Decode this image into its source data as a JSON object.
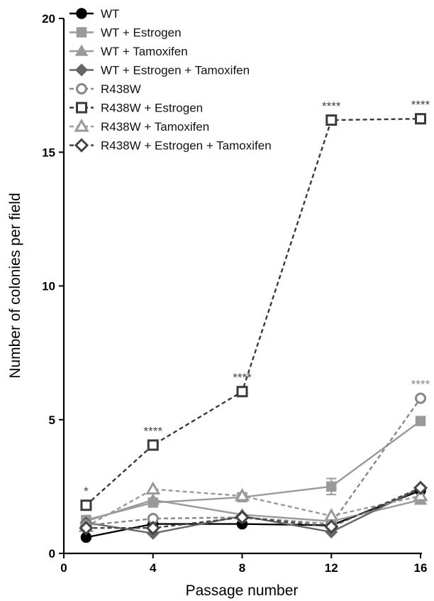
{
  "chart_data": {
    "type": "line",
    "title": "",
    "xlabel": "Passage number",
    "ylabel": "Number of colonies per field",
    "xlim": [
      0,
      16
    ],
    "ylim": [
      0,
      20
    ],
    "xticks": [
      0,
      4,
      8,
      12,
      16
    ],
    "yticks": [
      0,
      5,
      10,
      15,
      20
    ],
    "grid": false,
    "legend_position": "top-left",
    "series": [
      {
        "name": "WT",
        "x": [
          1,
          4,
          8,
          12,
          16
        ],
        "y": [
          0.6,
          1.1,
          1.1,
          1.05,
          2.35
        ],
        "color": "#000000",
        "marker": "circle",
        "filled": true,
        "dashed": false
      },
      {
        "name": "WT + Estrogen",
        "x": [
          1,
          4,
          8,
          12,
          16
        ],
        "y": [
          1.25,
          1.9,
          2.1,
          2.5,
          4.95
        ],
        "color": "#9a9a9a",
        "marker": "square",
        "filled": true,
        "dashed": false
      },
      {
        "name": "WT + Tamoxifen",
        "x": [
          1,
          4,
          8,
          12,
          16
        ],
        "y": [
          1.2,
          2.0,
          1.45,
          1.2,
          2.0
        ],
        "color": "#9a9a9a",
        "marker": "triangle",
        "filled": true,
        "dashed": false
      },
      {
        "name": "WT + Estrogen + Tamoxifen",
        "x": [
          1,
          4,
          8,
          12,
          16
        ],
        "y": [
          1.15,
          0.75,
          1.4,
          0.8,
          2.45
        ],
        "color": "#666666",
        "marker": "diamond",
        "filled": true,
        "dashed": false
      },
      {
        "name": "R438W",
        "x": [
          1,
          4,
          8,
          12,
          16
        ],
        "y": [
          1.05,
          1.3,
          1.35,
          1.1,
          5.8
        ],
        "color": "#888888",
        "marker": "circle",
        "filled": false,
        "dashed": true
      },
      {
        "name": "R438W + Estrogen",
        "x": [
          1,
          4,
          8,
          12,
          16
        ],
        "y": [
          1.8,
          4.05,
          6.05,
          16.2,
          16.25
        ],
        "color": "#3a3a3a",
        "marker": "square",
        "filled": false,
        "dashed": true
      },
      {
        "name": "R438W + Tamoxifen",
        "x": [
          1,
          4,
          8,
          12,
          16
        ],
        "y": [
          1.0,
          2.4,
          2.15,
          1.4,
          2.15
        ],
        "color": "#9a9a9a",
        "marker": "triangle",
        "filled": false,
        "dashed": true
      },
      {
        "name": "R438W + Estrogen + Tamoxifen",
        "x": [
          1,
          4,
          8,
          12,
          16
        ],
        "y": [
          0.95,
          0.95,
          1.35,
          1.0,
          2.45
        ],
        "color": "#444444",
        "marker": "diamond",
        "filled": false,
        "dashed": true
      }
    ],
    "error_bars": [
      {
        "series": "WT + Estrogen",
        "x": 12,
        "y": 2.5,
        "err": 0.3
      }
    ],
    "annotations": [
      {
        "text": "*",
        "x": 1,
        "y": 1.8,
        "color": "#444444"
      },
      {
        "text": "****",
        "x": 4,
        "y": 4.05,
        "color": "#444444"
      },
      {
        "text": "****",
        "x": 8,
        "y": 6.05,
        "color": "#444444"
      },
      {
        "text": "****",
        "x": 12,
        "y": 16.2,
        "color": "#444444"
      },
      {
        "text": "****",
        "x": 16,
        "y": 16.25,
        "color": "#444444"
      },
      {
        "text": "****",
        "x": 16,
        "y": 5.8,
        "color": "#888888"
      }
    ]
  }
}
